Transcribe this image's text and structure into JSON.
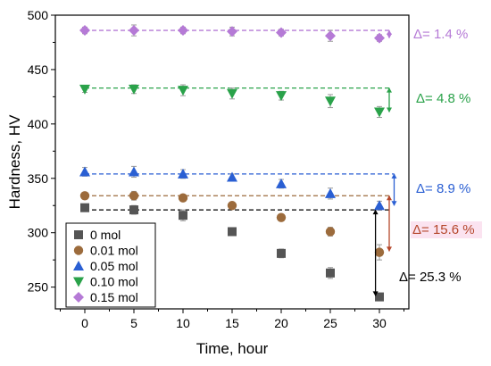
{
  "chart_data": {
    "type": "scatter",
    "xlabel": "Time, hour",
    "ylabel": "Hardness, HV",
    "xlim": [
      -3,
      33
    ],
    "ylim": [
      230,
      500
    ],
    "x_ticks": [
      0,
      5,
      10,
      15,
      20,
      25,
      30
    ],
    "y_ticks": [
      250,
      300,
      350,
      400,
      450,
      500
    ],
    "grid": false,
    "legend_position": "bottom-left",
    "series": [
      {
        "name": "0 mol",
        "marker": "square",
        "color": "#555555",
        "x": [
          0,
          5,
          10,
          15,
          20,
          25,
          30
        ],
        "y": [
          323,
          321,
          316,
          301,
          281,
          263,
          241
        ],
        "err": [
          3,
          4,
          5,
          3,
          4,
          5,
          3
        ]
      },
      {
        "name": "0.01 mol",
        "marker": "circle",
        "color": "#9c6b3c",
        "x": [
          0,
          5,
          10,
          15,
          20,
          25,
          30
        ],
        "y": [
          334,
          334,
          332,
          325,
          314,
          301,
          282
        ],
        "err": [
          3,
          4,
          3,
          3,
          3,
          4,
          7
        ]
      },
      {
        "name": "0.05 mol",
        "marker": "triangle-up",
        "color": "#2a5fd3",
        "x": [
          0,
          5,
          10,
          15,
          20,
          25,
          30
        ],
        "y": [
          356,
          356,
          354,
          351,
          345,
          336,
          325
        ],
        "err": [
          4,
          5,
          4,
          3,
          4,
          5,
          4
        ]
      },
      {
        "name": "0.10 mol",
        "marker": "triangle-down",
        "color": "#2aa24a",
        "x": [
          0,
          5,
          10,
          15,
          20,
          25,
          30
        ],
        "y": [
          432,
          432,
          431,
          428,
          426,
          421,
          411
        ],
        "err": [
          3,
          4,
          5,
          5,
          4,
          6,
          5
        ]
      },
      {
        "name": "0.15 mol",
        "marker": "diamond",
        "color": "#b57ad6",
        "x": [
          0,
          5,
          10,
          15,
          20,
          25,
          30
        ],
        "y": [
          486,
          486,
          486,
          485,
          484,
          481,
          479
        ],
        "err": [
          3,
          5,
          3,
          4,
          3,
          5,
          3
        ]
      }
    ],
    "reference_lines": [
      {
        "y": 486,
        "x_end": 31,
        "color": "#b57ad6"
      },
      {
        "y": 433,
        "x_end": 31,
        "color": "#2aa24a"
      },
      {
        "y": 354,
        "x_end": 31.5,
        "color": "#2a5fd3"
      },
      {
        "y": 334,
        "x_end": 31,
        "color": "#9c6b3c"
      },
      {
        "y": 321,
        "x_end": 31,
        "color": "#000000"
      }
    ],
    "annotations": [
      {
        "text": "Δ= 1.4 %",
        "color": "#b57ad6",
        "y_from": 486,
        "y_to": 479,
        "arrow_x": 31
      },
      {
        "text": "Δ= 4.8 %",
        "color": "#2aa24a",
        "y_from": 433,
        "y_to": 411,
        "arrow_x": 31
      },
      {
        "text": "Δ= 8.9 %",
        "color": "#2a5fd3",
        "y_from": 354,
        "y_to": 325,
        "arrow_x": 31.5
      },
      {
        "text": "Δ= 15.6 %",
        "color": "#b5472b",
        "y_from": 334,
        "y_to": 283,
        "arrow_x": 31
      },
      {
        "text": "Δ= 25.3 %",
        "color": "#000000",
        "y_from": 321,
        "y_to": 242,
        "arrow_x": 29.6
      }
    ]
  }
}
